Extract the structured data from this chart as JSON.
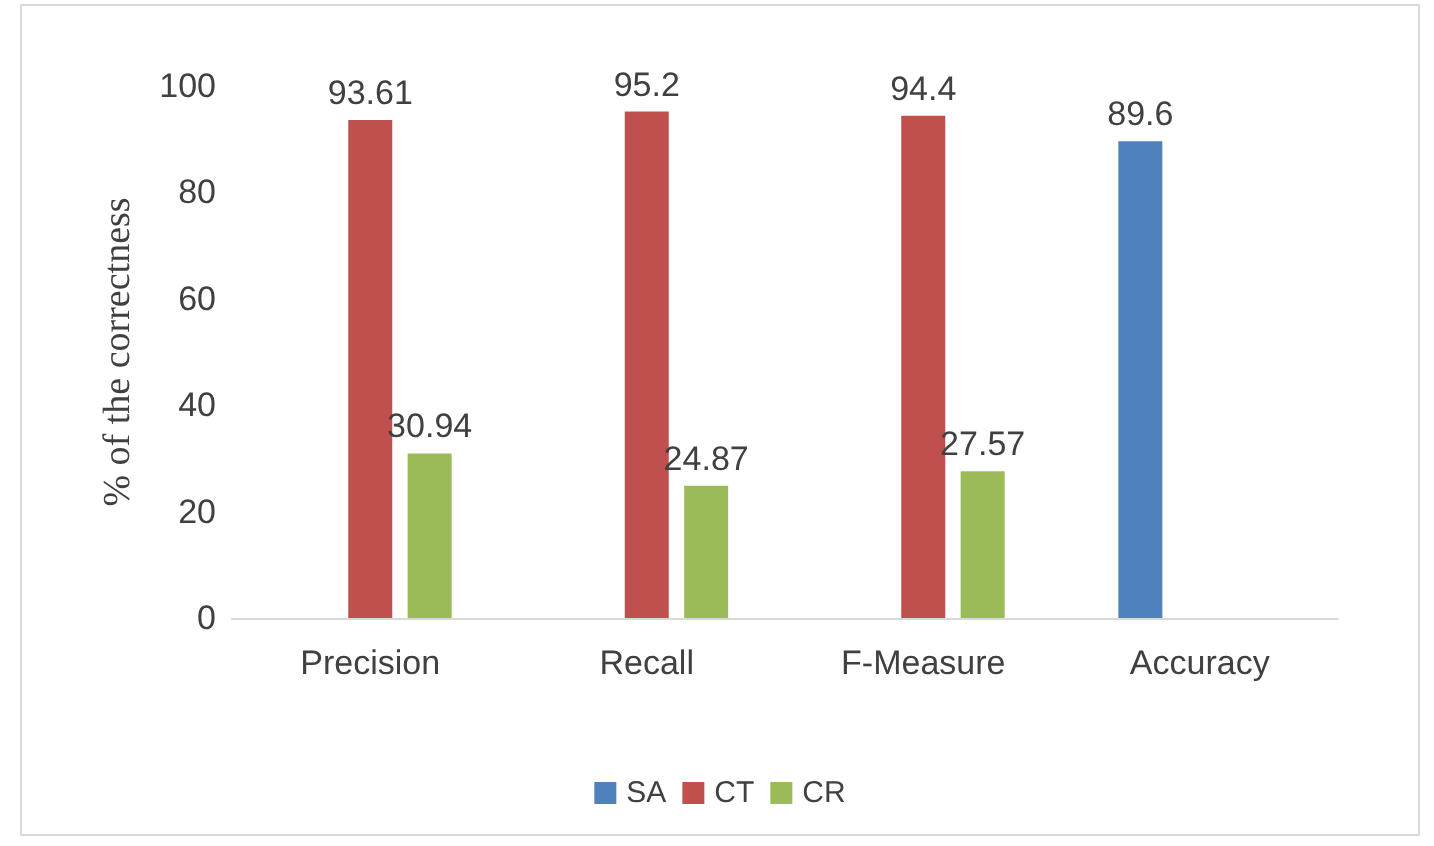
{
  "chart_data": {
    "type": "bar",
    "ylabel": "% of the correctness",
    "categories": [
      "Precision",
      "Recall",
      "F-Measure",
      "Accuracy"
    ],
    "series": [
      {
        "name": "SA",
        "color": "#4f81bd",
        "values": [
          null,
          null,
          null,
          89.6
        ]
      },
      {
        "name": "CT",
        "color": "#c0504d",
        "values": [
          93.61,
          95.2,
          94.4,
          null
        ]
      },
      {
        "name": "CR",
        "color": "#9bbb59",
        "values": [
          30.94,
          24.87,
          27.57,
          null
        ]
      }
    ],
    "ylim": [
      0,
      100
    ],
    "yticks": [
      0,
      20,
      40,
      60,
      80,
      100
    ],
    "grid": false,
    "legend": "bottom",
    "data_labels": true
  }
}
